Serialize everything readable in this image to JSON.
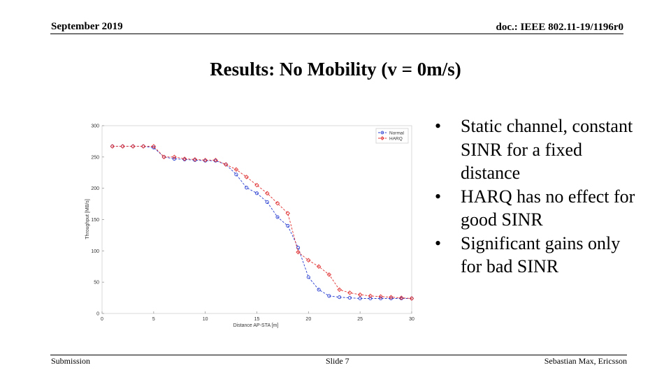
{
  "header": {
    "date": "September 2019",
    "doc_id": "doc.: IEEE 802.11-19/1196r0"
  },
  "slide": {
    "title": "Results: No Mobility (v = 0m/s)",
    "bullets": [
      "Static channel, constant SINR for a fixed distance",
      "HARQ has no effect for good SINR",
      "Significant gains only for bad SINR"
    ]
  },
  "footer": {
    "left": "Submission",
    "center": "Slide 7",
    "right": "Sebastian Max, Ericsson"
  },
  "colors": {
    "normal": "#2a3fd0",
    "harq": "#e03030"
  },
  "chart_data": {
    "type": "line",
    "xlabel": "Distance AP-STA [m]",
    "ylabel": "Throughput [MB/s]",
    "xlim": [
      0,
      30
    ],
    "ylim": [
      0,
      300
    ],
    "xticks": [
      0,
      5,
      10,
      15,
      20,
      25,
      30
    ],
    "yticks": [
      0,
      50,
      100,
      150,
      200,
      250,
      300
    ],
    "grid": false,
    "legend_position": "top-right",
    "x": [
      1,
      2,
      3,
      4,
      5,
      6,
      7,
      8,
      9,
      10,
      11,
      12,
      13,
      14,
      15,
      16,
      17,
      18,
      19,
      20,
      21,
      22,
      23,
      24,
      25,
      26,
      27,
      28,
      29,
      30
    ],
    "series": [
      {
        "name": "Normal",
        "marker": "circle",
        "values": [
          267,
          267,
          267,
          267,
          265,
          250,
          247,
          246,
          245,
          244,
          244,
          238,
          222,
          201,
          192,
          178,
          154,
          140,
          105,
          58,
          38,
          28,
          26,
          25,
          24,
          24,
          24,
          24,
          24,
          24
        ]
      },
      {
        "name": "HARQ",
        "marker": "diamond",
        "values": [
          267,
          267,
          267,
          267,
          267,
          250,
          250,
          247,
          246,
          245,
          245,
          238,
          230,
          218,
          205,
          192,
          176,
          160,
          98,
          85,
          75,
          62,
          38,
          33,
          30,
          28,
          27,
          26,
          25,
          24
        ]
      }
    ]
  }
}
